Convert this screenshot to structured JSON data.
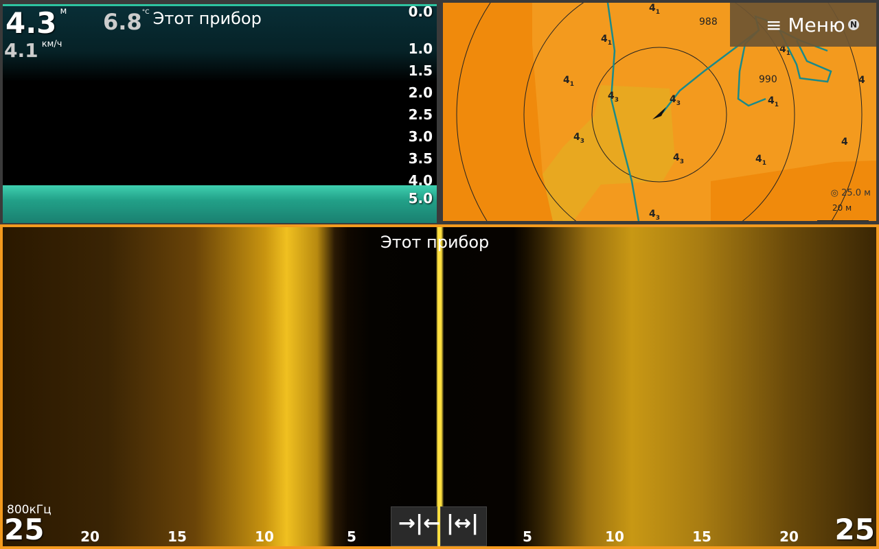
{
  "sonar": {
    "depth": "4.3",
    "depth_unit": "м",
    "temperature": "6.8",
    "temperature_unit": "°C",
    "source": "Этот прибор",
    "speed": "4.1",
    "speed_unit": "км/ч",
    "scale_top": "0.0",
    "scale": [
      "1.0",
      "1.5",
      "2.0",
      "2.5",
      "3.0",
      "3.5",
      "4.0"
    ],
    "scale_bottom": "5.0"
  },
  "map": {
    "menu": "Меню",
    "compass": "N",
    "range": "25.0 м",
    "scale_bar": "20 м",
    "markers": [
      "988",
      "990"
    ],
    "soundings": [
      {
        "depth": "4",
        "sub": "1"
      },
      {
        "depth": "4",
        "sub": "1"
      },
      {
        "depth": "4",
        "sub": "1"
      },
      {
        "depth": "4",
        "sub": "3"
      },
      {
        "depth": "4",
        "sub": "3"
      },
      {
        "depth": "4",
        "sub": "3"
      },
      {
        "depth": "4",
        "sub": "3"
      },
      {
        "depth": "4",
        "sub": "1"
      },
      {
        "depth": "4",
        "sub": "1"
      },
      {
        "depth": "4",
        "sub": "1"
      },
      {
        "depth": "4",
        "sub": "3"
      },
      {
        "depth": "4"
      },
      {
        "depth": "4"
      }
    ]
  },
  "sidescan": {
    "source": "Этот прибор",
    "frequency": "800кГц",
    "range_left": "25",
    "range_right": "25",
    "left_scale": [
      "20",
      "15",
      "10",
      "5"
    ],
    "right_scale": [
      "5",
      "10",
      "15",
      "20"
    ]
  }
}
